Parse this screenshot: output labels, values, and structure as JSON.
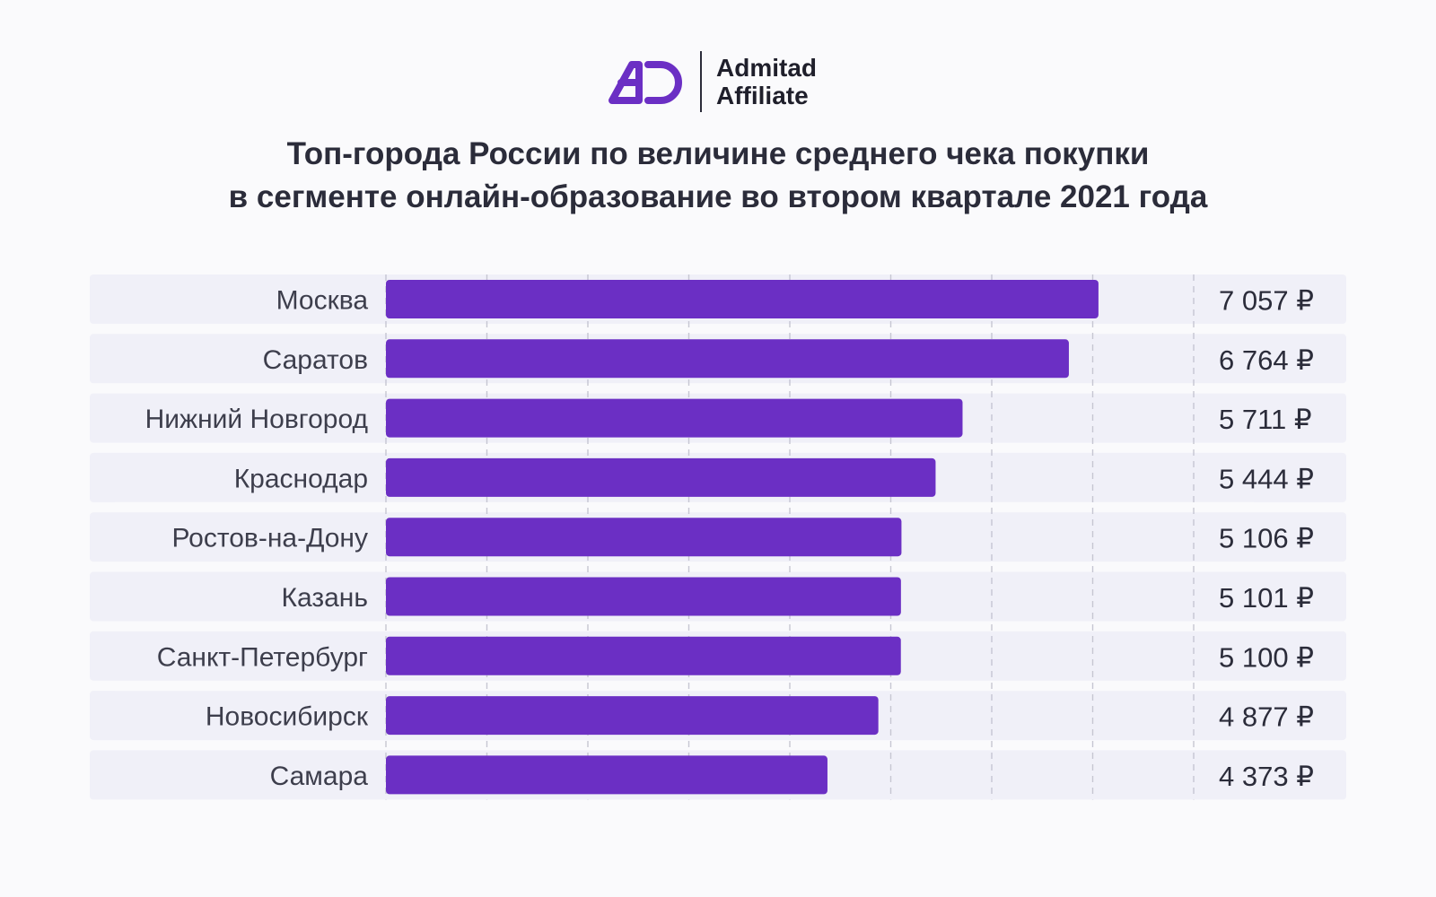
{
  "brand": {
    "line1": "Admitad",
    "line2": "Affiliate",
    "accent": "#6b2fc4"
  },
  "chart_data": {
    "type": "bar",
    "orientation": "horizontal",
    "title_line1": "Топ-города России по величине среднего чека покупки",
    "title_line2": "в сегменте онлайн-образование во втором квартале 2021 года",
    "categories": [
      "Москва",
      "Саратов",
      "Нижний Новгород",
      "Краснодар",
      "Ростов-на-Дону",
      "Казань",
      "Санкт-Петербург",
      "Новосибирск",
      "Самара"
    ],
    "values": [
      7057,
      6764,
      5711,
      5444,
      5106,
      5101,
      5100,
      4877,
      4373
    ],
    "value_labels": [
      "7 057 ₽",
      "6 764 ₽",
      "5 711 ₽",
      "5 444 ₽",
      "5 106 ₽",
      "5 101 ₽",
      "5 100 ₽",
      "4 877 ₽",
      "4 373 ₽"
    ],
    "xlim": [
      0,
      8000
    ],
    "grid": true,
    "bar_color": "#6b2fc4",
    "row_bg_color": "#f0f0f8"
  }
}
